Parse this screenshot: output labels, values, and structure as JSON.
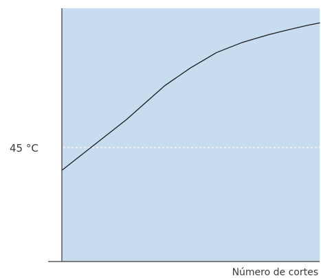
{
  "chart_data": {
    "type": "line",
    "title": "",
    "xlabel": "Número de cortes",
    "ylabel": "",
    "grid": false,
    "legend": "none",
    "plot_background": "#c7dcef",
    "line_color": "#1a1a1a",
    "reference_line_color": "#ffffff",
    "axis_color": "#3a3a3a",
    "x_ticks_labeled": false,
    "xlim": [
      0,
      100
    ],
    "ylim": [
      0,
      100
    ],
    "y_tick_labels": [
      {
        "value": 45,
        "label": "45 °C"
      }
    ],
    "reference_lines": [
      {
        "axis": "y",
        "value": 45,
        "style": "dashed"
      }
    ],
    "series": [
      {
        "values": [
          {
            "x": 0,
            "y": 36
          },
          {
            "x": 5,
            "y": 40
          },
          {
            "x": 10,
            "y": 44
          },
          {
            "x": 15,
            "y": 48
          },
          {
            "x": 20,
            "y": 52
          },
          {
            "x": 25,
            "y": 56
          },
          {
            "x": 30,
            "y": 60.5
          },
          {
            "x": 35,
            "y": 65
          },
          {
            "x": 40,
            "y": 69.5
          },
          {
            "x": 45,
            "y": 73
          },
          {
            "x": 50,
            "y": 76.5
          },
          {
            "x": 55,
            "y": 79.5
          },
          {
            "x": 60,
            "y": 82.5
          },
          {
            "x": 65,
            "y": 84.5
          },
          {
            "x": 70,
            "y": 86.5
          },
          {
            "x": 75,
            "y": 88
          },
          {
            "x": 80,
            "y": 89.5
          },
          {
            "x": 85,
            "y": 90.8
          },
          {
            "x": 90,
            "y": 92
          },
          {
            "x": 95,
            "y": 93.2
          },
          {
            "x": 100,
            "y": 94.2
          }
        ]
      }
    ]
  }
}
